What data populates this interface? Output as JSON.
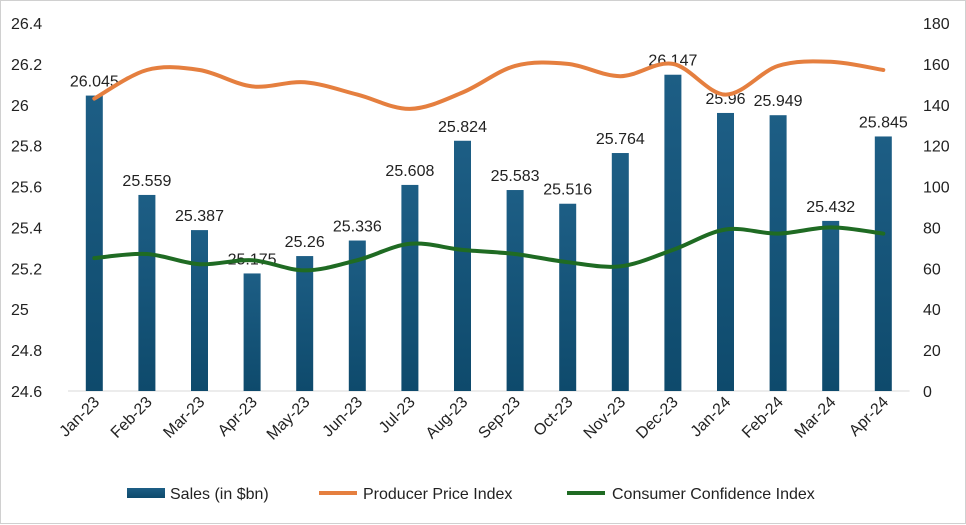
{
  "chart_data": {
    "type": "bar",
    "categories": [
      "Jan-23",
      "Feb-23",
      "Mar-23",
      "Apr-23",
      "May-23",
      "Jun-23",
      "Jul-23",
      "Aug-23",
      "Sep-23",
      "Oct-23",
      "Nov-23",
      "Dec-23",
      "Jan-24",
      "Feb-24",
      "Mar-24",
      "Apr-24"
    ],
    "series": [
      {
        "name": "Sales (in $bn)",
        "type": "bar",
        "axis": "left",
        "values": [
          26.045,
          25.559,
          25.387,
          25.175,
          25.26,
          25.336,
          25.608,
          25.824,
          25.583,
          25.516,
          25.764,
          26.147,
          25.96,
          25.949,
          25.432,
          25.845
        ],
        "labels": [
          "26.045",
          "25.559",
          "25.387",
          "25.175",
          "25.26",
          "25.336",
          "25.608",
          "25.824",
          "25.583",
          "25.516",
          "25.764",
          "26.147",
          "25.96",
          "25.949",
          "25.432",
          "25.845"
        ]
      },
      {
        "name": "Producer Price Index",
        "type": "line",
        "axis": "right",
        "values": [
          143,
          157,
          157,
          149,
          151,
          145,
          138,
          146,
          159,
          160,
          154,
          160,
          145,
          159,
          161,
          157
        ]
      },
      {
        "name": "Consumer Confidence Index",
        "type": "line",
        "axis": "right",
        "values": [
          65,
          67,
          62,
          64,
          59,
          64,
          72,
          69,
          67,
          63,
          61,
          69,
          79,
          77,
          80,
          77
        ]
      }
    ],
    "ylim_left": [
      24.6,
      26.4
    ],
    "yticks_left": [
      "24.6",
      "24.8",
      "25",
      "25.2",
      "25.4",
      "25.6",
      "25.8",
      "26",
      "26.2",
      "26.4"
    ],
    "ylim_right": [
      0,
      180
    ],
    "yticks_right": [
      "0",
      "20",
      "40",
      "60",
      "80",
      "100",
      "120",
      "140",
      "160",
      "180"
    ],
    "grid": false,
    "legend": "bottom",
    "colors": {
      "bar_top": "#1d5e85",
      "bar_bottom": "#0e4a6c",
      "ppi": "#e57f3f",
      "cci": "#1f6b23"
    }
  }
}
